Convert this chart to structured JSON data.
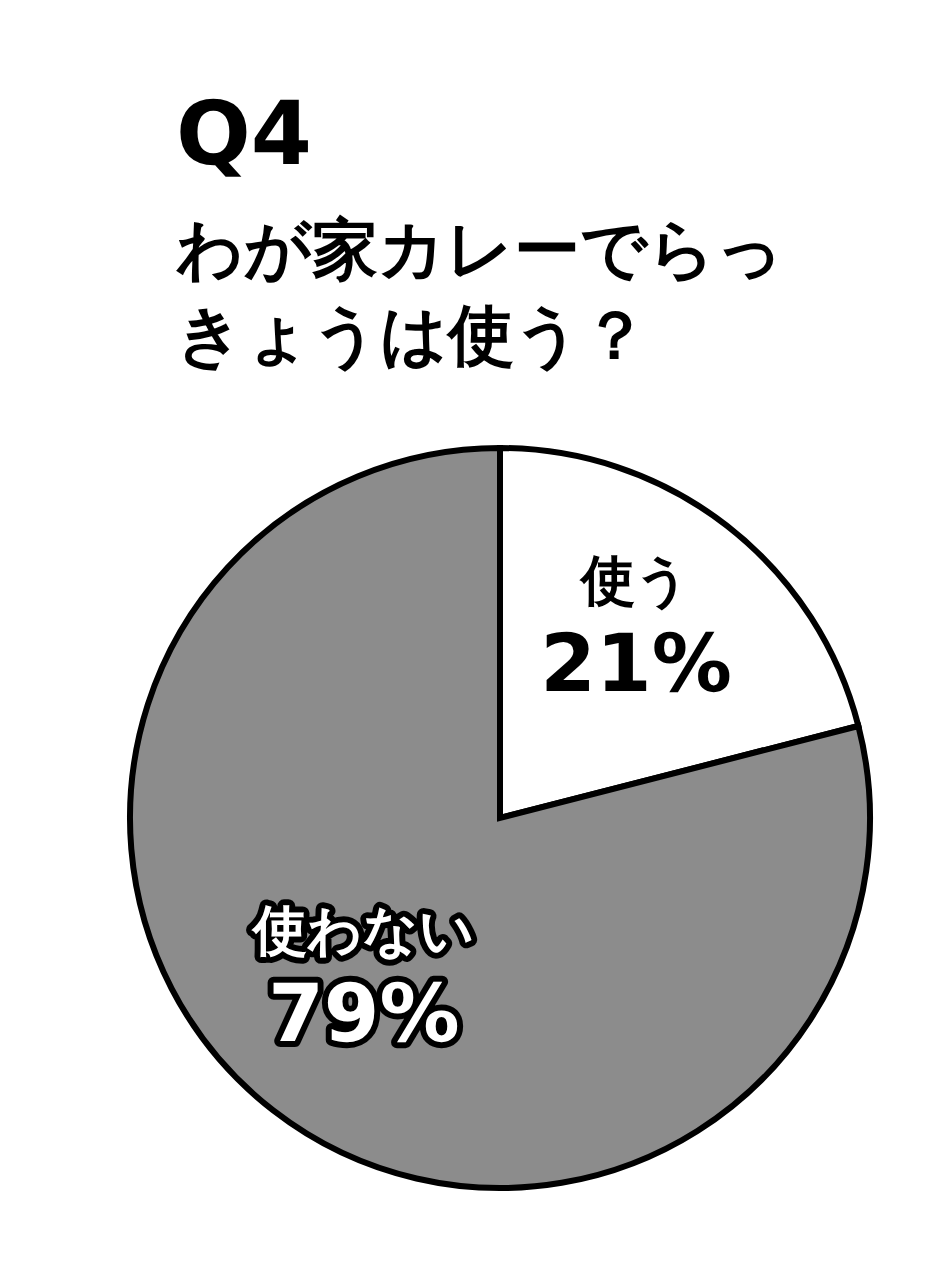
{
  "chart_data": {
    "type": "pie",
    "title": "Q4",
    "subtitle": "わが家カレーでらっきょうは使う？",
    "categories": [
      "使う",
      "使わない"
    ],
    "values": [
      21,
      79
    ],
    "colors": [
      "#ffffff",
      "#8c8c8c"
    ],
    "value_labels": [
      "21%",
      "79%"
    ]
  }
}
